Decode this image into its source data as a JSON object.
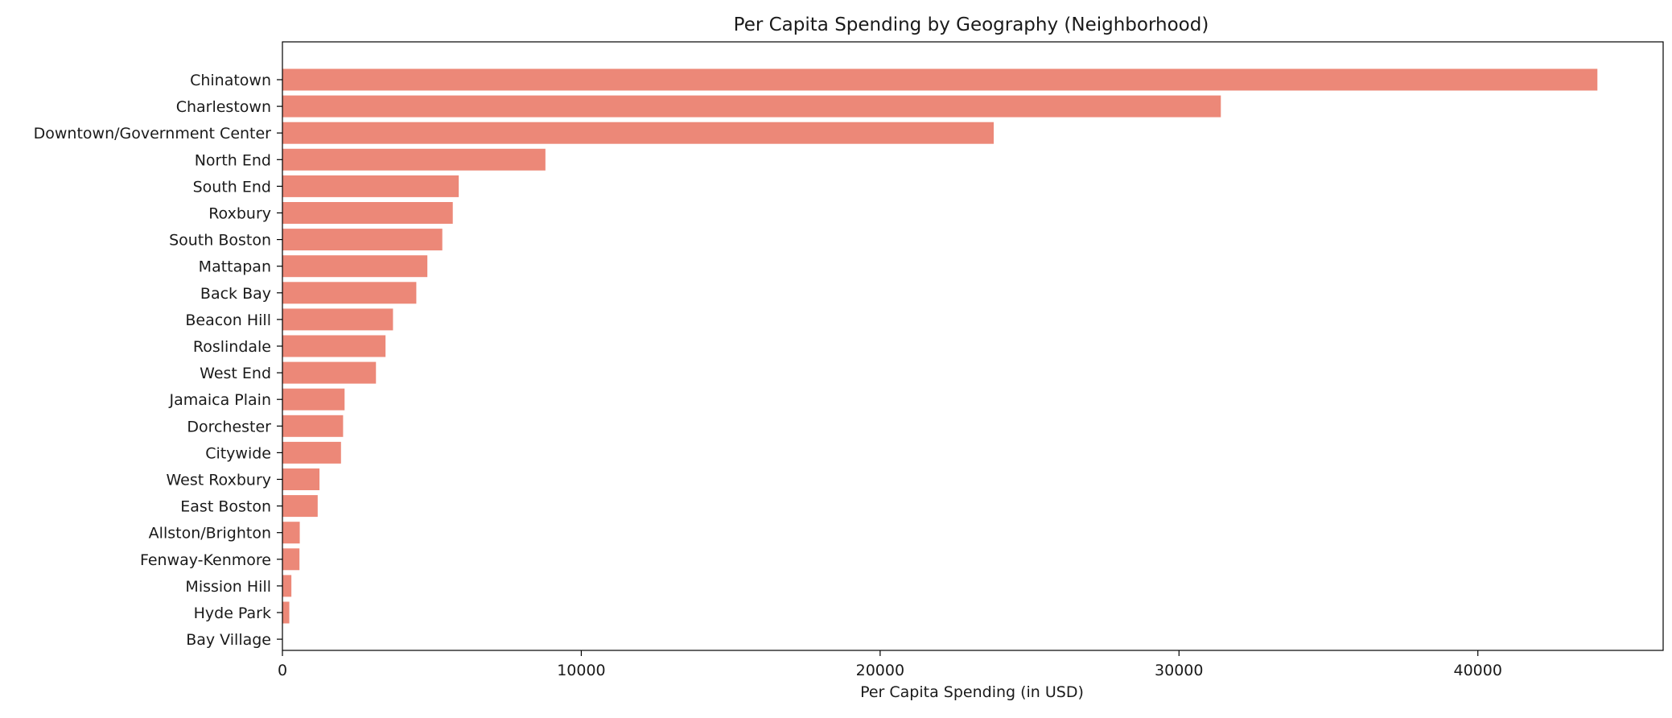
{
  "chart_data": {
    "type": "bar",
    "orientation": "horizontal",
    "title": "Per Capita Spending by Geography (Neighborhood)",
    "xlabel": "Per Capita Spending (in USD)",
    "ylabel": "",
    "xlim": [
      0,
      46200
    ],
    "xticks": [
      0,
      10000,
      20000,
      30000,
      40000
    ],
    "xtick_labels": [
      "0",
      "10000",
      "20000",
      "30000",
      "40000"
    ],
    "grid": false,
    "legend": "none",
    "bar_color": "#ec8878",
    "categories": [
      "Chinatown",
      "Charlestown",
      "Downtown/Government Center",
      "North End",
      "South End",
      "Roxbury",
      "South Boston",
      "Mattapan",
      "Back Bay",
      "Beacon Hill",
      "Roslindale",
      "West End",
      "Jamaica Plain",
      "Dorchester",
      "Citywide",
      "West Roxbury",
      "East Boston",
      "Allston/Brighton",
      "Fenway-Kenmore",
      "Mission Hill",
      "Hyde Park",
      "Bay Village"
    ],
    "values": [
      44000,
      31400,
      23800,
      8800,
      5900,
      5700,
      5350,
      4850,
      4480,
      3700,
      3450,
      3130,
      2080,
      2030,
      1960,
      1240,
      1180,
      580,
      570,
      300,
      230,
      0
    ]
  }
}
